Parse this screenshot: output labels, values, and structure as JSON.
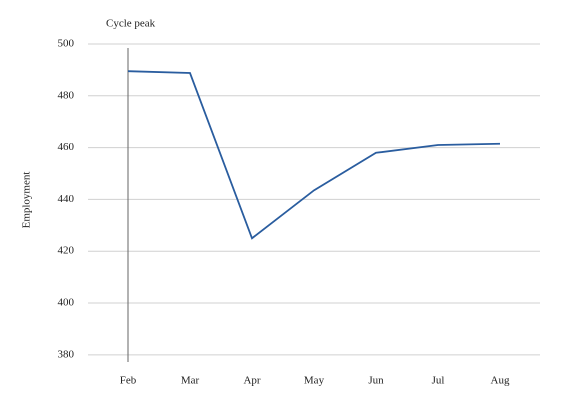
{
  "chart_data": {
    "type": "line",
    "y_label": "Employment",
    "categories": [
      "Feb",
      "Mar",
      "Apr",
      "May",
      "Jun",
      "Jul",
      "Aug"
    ],
    "values": [
      489.5,
      488.8,
      425,
      443.5,
      458,
      461,
      461.5
    ],
    "color": "#2a5d9f",
    "ylim": [
      378,
      500
    ],
    "yticks": [
      380,
      400,
      420,
      440,
      460,
      480,
      500
    ],
    "grid": true,
    "annotation": {
      "text": "Cycle peak",
      "x": "Feb"
    }
  }
}
